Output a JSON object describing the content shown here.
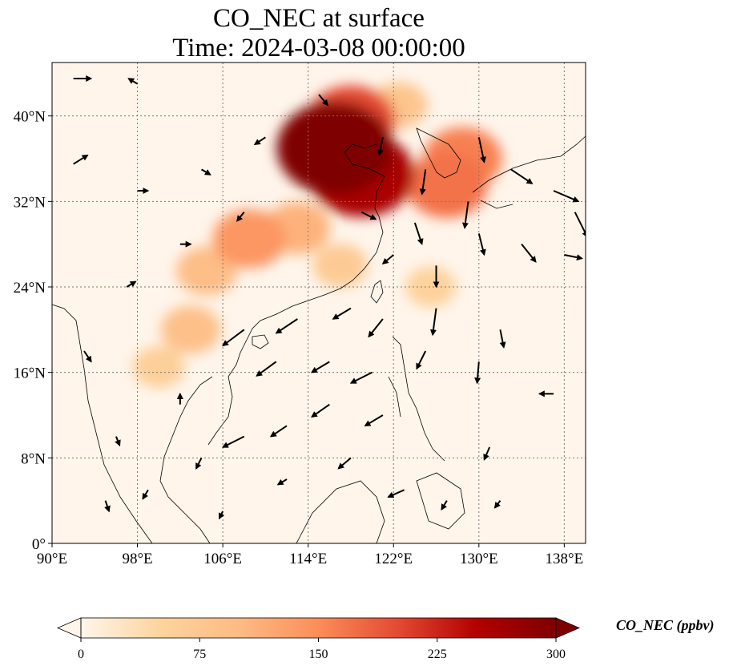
{
  "title": {
    "line1": "CO_NEC at surface",
    "line2": "Time: 2024-03-08 00:00:00"
  },
  "axes": {
    "lat_ticks": [
      "40°N",
      "32°N",
      "24°N",
      "16°N",
      "8°N",
      "0°"
    ],
    "lon_ticks": [
      "90°E",
      "98°E",
      "106°E",
      "114°E",
      "122°E",
      "130°E",
      "138°E"
    ],
    "lat_range": [
      0,
      45
    ],
    "lon_range": [
      90,
      140
    ],
    "grid": "dotted"
  },
  "colorbar": {
    "label": "CO_NEC (ppbv)",
    "ticks": [
      "0",
      "75",
      "150",
      "225",
      "300"
    ],
    "range": [
      0,
      300
    ],
    "colormap": [
      "#fff5eb",
      "#fdd49e",
      "#fdbb84",
      "#fc8d59",
      "#e34a33",
      "#b30000",
      "#7f0000"
    ],
    "extend": "both"
  },
  "chart_data": {
    "type": "heatmap",
    "title": "CO_NEC at surface\nTime: 2024-03-08 00:00:00",
    "variable": "CO_NEC",
    "units": "ppbv",
    "time": "2024-03-08 00:00:00",
    "xlim": [
      90,
      140
    ],
    "ylim": [
      0,
      45
    ],
    "regions": [
      {
        "lon": 116.5,
        "lat": 37.0,
        "value": 300
      },
      {
        "lon": 119.0,
        "lat": 34.5,
        "value": 260
      },
      {
        "lon": 118.0,
        "lat": 39.5,
        "value": 200
      },
      {
        "lon": 128.5,
        "lat": 36.0,
        "value": 160
      },
      {
        "lon": 127.0,
        "lat": 33.5,
        "value": 170
      },
      {
        "lon": 108.5,
        "lat": 28.5,
        "value": 140
      },
      {
        "lon": 113.0,
        "lat": 29.5,
        "value": 110
      },
      {
        "lon": 104.5,
        "lat": 25.5,
        "value": 95
      },
      {
        "lon": 103.0,
        "lat": 20.0,
        "value": 90
      },
      {
        "lon": 117.0,
        "lat": 26.0,
        "value": 70
      },
      {
        "lon": 125.5,
        "lat": 24.0,
        "value": 55
      },
      {
        "lon": 100.0,
        "lat": 16.5,
        "value": 60
      },
      {
        "lon": 122.5,
        "lat": 41.0,
        "value": 80
      }
    ],
    "wind_vectors": [
      {
        "lon": 92,
        "lat": 43.5,
        "u": 1.0,
        "v": 0.0
      },
      {
        "lon": 98,
        "lat": 43,
        "u": -0.5,
        "v": 0.3
      },
      {
        "lon": 92,
        "lat": 35.5,
        "u": 0.8,
        "v": 0.5
      },
      {
        "lon": 98,
        "lat": 33,
        "u": 0.6,
        "v": 0.0
      },
      {
        "lon": 104,
        "lat": 35,
        "u": 0.5,
        "v": -0.3
      },
      {
        "lon": 110,
        "lat": 38,
        "u": -0.6,
        "v": -0.4
      },
      {
        "lon": 115,
        "lat": 42,
        "u": 0.5,
        "v": -0.6
      },
      {
        "lon": 121,
        "lat": 38,
        "u": -0.2,
        "v": -1.0
      },
      {
        "lon": 125,
        "lat": 35,
        "u": -0.2,
        "v": -1.4
      },
      {
        "lon": 130,
        "lat": 38,
        "u": 0.3,
        "v": -1.4
      },
      {
        "lon": 133,
        "lat": 35,
        "u": 1.2,
        "v": -0.8
      },
      {
        "lon": 137,
        "lat": 33,
        "u": 1.4,
        "v": -0.6
      },
      {
        "lon": 139,
        "lat": 31,
        "u": 0.7,
        "v": -1.4
      },
      {
        "lon": 130,
        "lat": 29,
        "u": 0.3,
        "v": -1.2
      },
      {
        "lon": 134,
        "lat": 28,
        "u": 0.8,
        "v": -1.0
      },
      {
        "lon": 138,
        "lat": 27,
        "u": 1.0,
        "v": -0.2
      },
      {
        "lon": 126,
        "lat": 26,
        "u": 0.0,
        "v": -1.2
      },
      {
        "lon": 122,
        "lat": 27,
        "u": -0.6,
        "v": -0.5
      },
      {
        "lon": 126,
        "lat": 22,
        "u": -0.2,
        "v": -1.5
      },
      {
        "lon": 121,
        "lat": 21,
        "u": -0.8,
        "v": -1.0
      },
      {
        "lon": 118,
        "lat": 22,
        "u": -1.0,
        "v": -0.6
      },
      {
        "lon": 113,
        "lat": 21,
        "u": -1.2,
        "v": -0.8
      },
      {
        "lon": 108,
        "lat": 20,
        "u": -1.2,
        "v": -0.9
      },
      {
        "lon": 116,
        "lat": 17,
        "u": -1.0,
        "v": -0.6
      },
      {
        "lon": 111,
        "lat": 17,
        "u": -1.1,
        "v": -0.8
      },
      {
        "lon": 120,
        "lat": 16,
        "u": -1.2,
        "v": -0.6
      },
      {
        "lon": 125,
        "lat": 18,
        "u": -0.5,
        "v": -1.0
      },
      {
        "lon": 130,
        "lat": 17,
        "u": -0.1,
        "v": -1.2
      },
      {
        "lon": 116,
        "lat": 13,
        "u": -1.0,
        "v": -0.7
      },
      {
        "lon": 121,
        "lat": 12,
        "u": -1.0,
        "v": -0.6
      },
      {
        "lon": 112,
        "lat": 11,
        "u": -0.9,
        "v": -0.6
      },
      {
        "lon": 108,
        "lat": 10,
        "u": -1.2,
        "v": -0.6
      },
      {
        "lon": 118,
        "lat": 8,
        "u": -0.7,
        "v": -0.6
      },
      {
        "lon": 123,
        "lat": 5,
        "u": -0.9,
        "v": -0.4
      },
      {
        "lon": 112,
        "lat": 6,
        "u": -0.5,
        "v": -0.3
      },
      {
        "lon": 104,
        "lat": 8,
        "u": -0.3,
        "v": -0.6
      },
      {
        "lon": 99,
        "lat": 5,
        "u": -0.3,
        "v": -0.5
      },
      {
        "lon": 96,
        "lat": 10,
        "u": 0.2,
        "v": -0.5
      },
      {
        "lon": 93,
        "lat": 18,
        "u": 0.4,
        "v": -0.6
      },
      {
        "lon": 97,
        "lat": 24,
        "u": 0.5,
        "v": 0.3
      },
      {
        "lon": 102,
        "lat": 28,
        "u": 0.6,
        "v": 0.0
      },
      {
        "lon": 108,
        "lat": 31,
        "u": -0.4,
        "v": -0.5
      },
      {
        "lon": 132,
        "lat": 20,
        "u": 0.2,
        "v": -1.0
      },
      {
        "lon": 137,
        "lat": 14,
        "u": -0.8,
        "v": 0.0
      },
      {
        "lon": 131,
        "lat": 9,
        "u": -0.3,
        "v": -0.7
      },
      {
        "lon": 127,
        "lat": 4,
        "u": -0.3,
        "v": -0.5
      },
      {
        "lon": 132,
        "lat": 4,
        "u": -0.3,
        "v": -0.4
      },
      {
        "lon": 124,
        "lat": 30,
        "u": 0.4,
        "v": -1.2
      },
      {
        "lon": 129,
        "lat": 32,
        "u": -0.2,
        "v": -1.5
      },
      {
        "lon": 119,
        "lat": 31,
        "u": 0.8,
        "v": -0.4
      },
      {
        "lon": 102,
        "lat": 13,
        "u": 0.0,
        "v": 0.6
      },
      {
        "lon": 95,
        "lat": 4,
        "u": 0.2,
        "v": -0.6
      },
      {
        "lon": 106,
        "lat": 3,
        "u": -0.2,
        "v": -0.4
      }
    ]
  }
}
